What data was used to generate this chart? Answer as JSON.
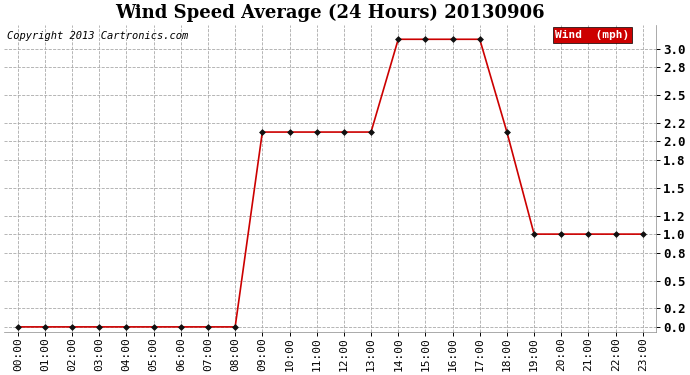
{
  "title": "Wind Speed Average (24 Hours) 20130906",
  "copyright_text": "Copyright 2013 Cartronics.com",
  "legend_label": "Wind  (mph)",
  "legend_bg": "#cc0000",
  "legend_text_color": "#ffffff",
  "x_labels": [
    "00:00",
    "01:00",
    "02:00",
    "03:00",
    "04:00",
    "05:00",
    "06:00",
    "07:00",
    "08:00",
    "09:00",
    "10:00",
    "11:00",
    "12:00",
    "13:00",
    "14:00",
    "15:00",
    "16:00",
    "17:00",
    "18:00",
    "19:00",
    "20:00",
    "21:00",
    "22:00",
    "23:00"
  ],
  "y_values": [
    0.0,
    0.0,
    0.0,
    0.0,
    0.0,
    0.0,
    0.0,
    0.0,
    0.0,
    2.1,
    2.1,
    2.1,
    2.1,
    2.1,
    3.1,
    3.1,
    3.1,
    3.1,
    2.1,
    1.0,
    1.0,
    1.0,
    1.0,
    1.0
  ],
  "ylim": [
    -0.05,
    3.25
  ],
  "yticks": [
    0.0,
    0.2,
    0.5,
    0.8,
    1.0,
    1.2,
    1.5,
    1.8,
    2.0,
    2.2,
    2.5,
    2.8,
    3.0
  ],
  "line_color": "#cc0000",
  "marker_color": "#111111",
  "bg_color": "#ffffff",
  "plot_bg_color": "#ffffff",
  "grid_color": "#aaaaaa",
  "title_fontsize": 13,
  "axis_fontsize": 8,
  "copyright_fontsize": 7.5,
  "legend_fontsize": 8
}
